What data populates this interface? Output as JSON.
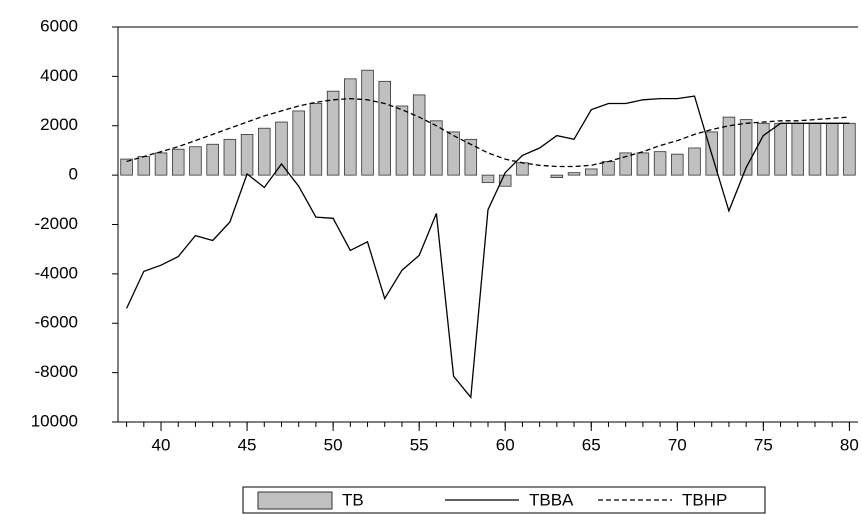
{
  "chart_data": {
    "type": "bar",
    "x": [
      38,
      39,
      40,
      41,
      42,
      43,
      44,
      45,
      46,
      47,
      48,
      49,
      50,
      51,
      52,
      53,
      54,
      55,
      56,
      57,
      58,
      59,
      60,
      61,
      62,
      63,
      64,
      65,
      66,
      67,
      68,
      69,
      70,
      71,
      72,
      73,
      74,
      75,
      76,
      77,
      78,
      79,
      80
    ],
    "series": [
      {
        "name": "TB",
        "mark": "bar",
        "color": "#c0c0c0",
        "values": [
          650,
          750,
          900,
          1050,
          1150,
          1250,
          1450,
          1650,
          1900,
          2150,
          2600,
          2900,
          3400,
          3900,
          4250,
          3800,
          2800,
          3250,
          2200,
          1750,
          1450,
          -300,
          -450,
          500,
          0,
          -100,
          100,
          250,
          550,
          900,
          900,
          950,
          850,
          1100,
          1750,
          2350,
          2250,
          2100,
          2100,
          2100,
          2100,
          2100,
          2100
        ]
      },
      {
        "name": "TBBA",
        "mark": "line",
        "dashed": false,
        "color": "#000000",
        "values": [
          -5400,
          -3900,
          -3650,
          -3300,
          -2450,
          -2650,
          -1900,
          50,
          -500,
          450,
          -450,
          -1700,
          -1750,
          -3050,
          -2700,
          -5000,
          -3850,
          -3250,
          -1550,
          -8150,
          -9000,
          -1400,
          100,
          800,
          1100,
          1600,
          1450,
          2650,
          2900,
          2900,
          3050,
          3100,
          3100,
          3200,
          850,
          -1450,
          300,
          1600,
          2100,
          2100,
          2100,
          2100,
          2100
        ]
      },
      {
        "name": "TBHP",
        "mark": "line",
        "dashed": true,
        "color": "#000000",
        "values": [
          550,
          750,
          950,
          1150,
          1400,
          1650,
          1900,
          2150,
          2400,
          2600,
          2800,
          2950,
          3050,
          3100,
          3050,
          2900,
          2650,
          2350,
          2000,
          1600,
          1250,
          900,
          650,
          500,
          400,
          350,
          350,
          400,
          550,
          750,
          950,
          1200,
          1400,
          1650,
          1850,
          2000,
          2100,
          2150,
          2200,
          2200,
          2250,
          2300,
          2350
        ]
      }
    ],
    "xlim": [
      37.5,
      80.5
    ],
    "xticks": [
      40,
      45,
      50,
      55,
      60,
      65,
      70,
      75,
      80
    ],
    "ylim": [
      -10000,
      6000
    ],
    "yticks": [
      {
        "value": -10000,
        "label": "10000"
      },
      -8000,
      -6000,
      -4000,
      -2000,
      0,
      2000,
      4000,
      6000
    ],
    "grid": false,
    "legend": "bottom"
  }
}
